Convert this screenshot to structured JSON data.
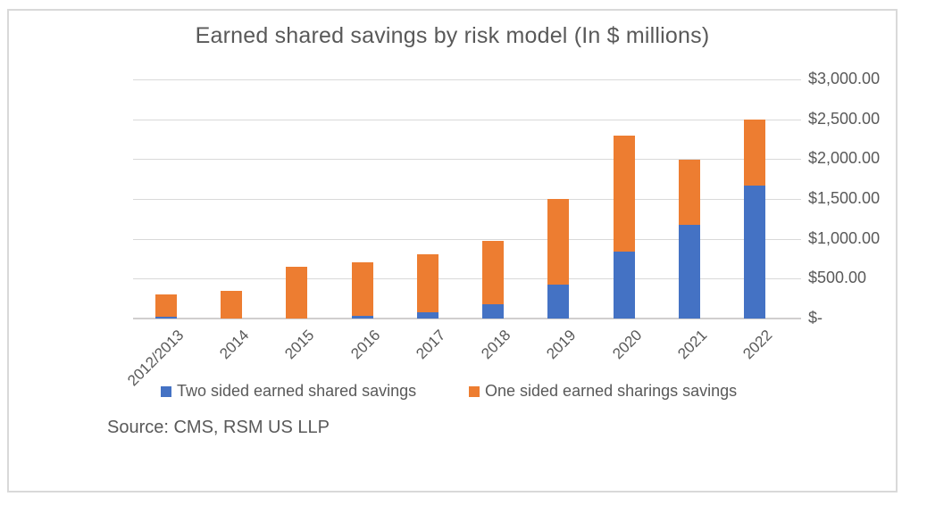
{
  "chart_data": {
    "type": "bar",
    "subtype": "stacked-vertical",
    "title": "Earned shared savings by risk model (In $ millions)",
    "categories": [
      "2012/2013",
      "2014",
      "2015",
      "2016",
      "2017",
      "2018",
      "2019",
      "2020",
      "2021",
      "2022"
    ],
    "series": [
      {
        "name": "Two sided earned shared savings",
        "color": "#4472C4",
        "values": [
          25,
          0,
          0,
          35,
          75,
          175,
          430,
          840,
          1180,
          1670
        ]
      },
      {
        "name": "One sided earned sharings savings",
        "color": "#ED7D31",
        "values": [
          280,
          345,
          645,
          675,
          725,
          800,
          1070,
          1460,
          820,
          830
        ]
      }
    ],
    "totals": [
      305,
      345,
      645,
      710,
      800,
      975,
      1500,
      2300,
      2000,
      2500
    ],
    "y_axis": {
      "side": "right",
      "min": 0,
      "max": 3000,
      "tick_values": [
        0,
        500,
        1000,
        1500,
        2000,
        2500,
        3000
      ],
      "tick_labels": [
        "$-",
        "$500.00",
        "$1,000.00",
        "$1,500.00",
        "$2,000.00",
        "$2,500.00",
        "$3,000.00"
      ]
    },
    "x_axis": {
      "label_rotation_deg": 45
    },
    "grid": true,
    "legend_position": "bottom"
  },
  "notes": {
    "source": "Source: CMS, RSM US LLP"
  },
  "style": {
    "text_color": "#595959",
    "gridline_color": "#d9d9d9",
    "border_color": "#d9d9d9",
    "background": "#ffffff"
  }
}
